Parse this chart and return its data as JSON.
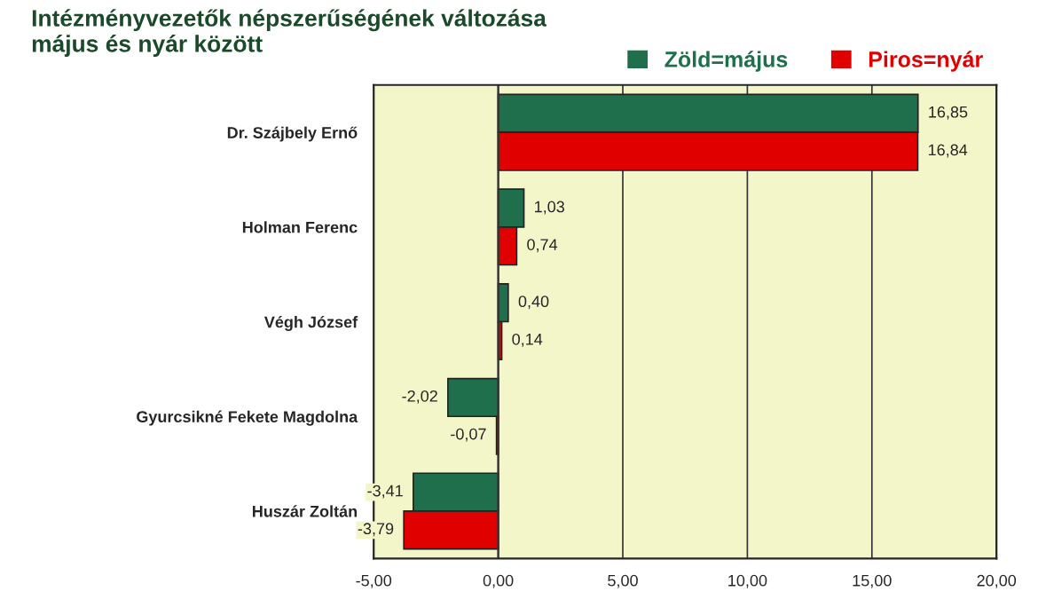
{
  "chart_data": {
    "type": "bar",
    "orientation": "horizontal",
    "title": "Intézményvezetők népszerűségének változása\nmájus és nyár között",
    "categories": [
      "Dr. Szájbely Ernő",
      "Holman Ferenc",
      "Végh József",
      "Gyurcsikné Fekete Magdolna",
      "Huszár Zoltán"
    ],
    "series": [
      {
        "name": "Zöld=május",
        "color": "#1f6e4c",
        "values": [
          16.85,
          1.03,
          0.4,
          -2.02,
          -3.41
        ],
        "value_labels": [
          "16,85",
          "1,03",
          "0,40",
          "-2,02",
          "-3,41"
        ]
      },
      {
        "name": "Piros=nyár",
        "color": "#e00000",
        "values": [
          16.84,
          0.74,
          0.14,
          -0.07,
          -3.79
        ],
        "value_labels": [
          "16,84",
          "0,74",
          "0,14",
          "-0,07",
          "-3,79"
        ]
      }
    ],
    "xlim": [
      -5,
      20
    ],
    "xticks": [
      {
        "value": -5,
        "label": "-5,00"
      },
      {
        "value": 0,
        "label": "0,00"
      },
      {
        "value": 5,
        "label": "5,00"
      },
      {
        "value": 10,
        "label": "10,00"
      },
      {
        "value": 15,
        "label": "15,00"
      },
      {
        "value": 20,
        "label": "20,00"
      }
    ],
    "grid": "x",
    "legend": "top right"
  }
}
